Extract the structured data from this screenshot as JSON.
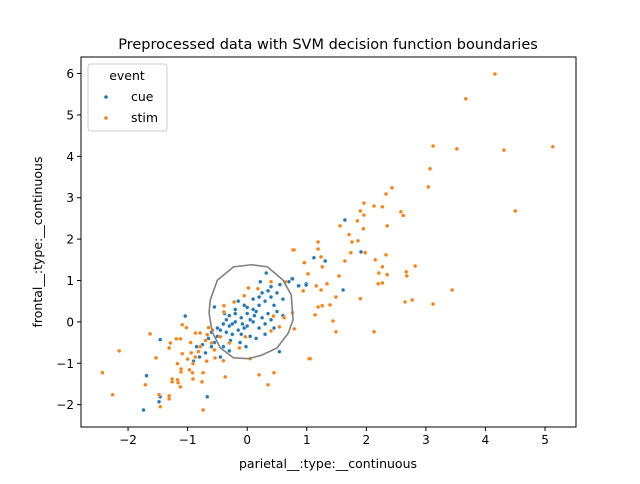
{
  "chart_data": {
    "type": "scatter",
    "title": "Preprocessed data with SVM decision function boundaries",
    "xlabel": "parietal__:type:__continuous",
    "ylabel": "frontal__:type:__continuous",
    "xlim": [
      -2.79,
      5.52
    ],
    "ylim": [
      -2.54,
      6.4
    ],
    "xticks": [
      -2,
      -1,
      0,
      1,
      2,
      3,
      4,
      5
    ],
    "yticks": [
      -2,
      -1,
      0,
      1,
      2,
      3,
      4,
      5,
      6
    ],
    "grid": false,
    "legend": {
      "title": "event",
      "placement": "top-left"
    },
    "series": [
      {
        "name": "cue",
        "color": "#1f77b4",
        "points": [
          [
            1.64,
            2.46
          ],
          [
            1.12,
            1.55
          ],
          [
            1.31,
            1.47
          ],
          [
            1.91,
            1.69
          ],
          [
            0.87,
            0.87
          ],
          [
            0.99,
            0.92
          ],
          [
            1.61,
            0.77
          ],
          [
            0.75,
            1.04
          ],
          [
            -1.74,
            -2.13
          ],
          [
            -1.69,
            -1.3
          ],
          [
            -1.46,
            -1.81
          ],
          [
            -1.48,
            -1.93
          ],
          [
            -1.46,
            -0.43
          ],
          [
            -1.04,
            0.14
          ],
          [
            -0.67,
            -1.81
          ],
          [
            -0.55,
            0.36
          ],
          [
            0.32,
            1.18
          ],
          [
            0.22,
            0.97
          ],
          [
            0.54,
            -0.72
          ],
          [
            -0.02,
            -0.6
          ],
          [
            0.7,
            0.97
          ],
          [
            0.76,
            1.04
          ],
          [
            0.86,
            0.87
          ],
          [
            0.99,
            0.89
          ],
          [
            -0.3,
            -0.1
          ],
          [
            -0.2,
            0.0
          ],
          [
            -0.1,
            0.1
          ],
          [
            0.0,
            0.2
          ],
          [
            0.1,
            0.3
          ],
          [
            0.2,
            0.4
          ],
          [
            0.3,
            0.5
          ],
          [
            0.4,
            0.6
          ],
          [
            0.5,
            0.7
          ],
          [
            0.45,
            0.4
          ],
          [
            0.35,
            0.2
          ],
          [
            0.25,
            0.1
          ],
          [
            0.15,
            0.25
          ],
          [
            0.05,
            0.05
          ],
          [
            -0.05,
            -0.15
          ],
          [
            -0.15,
            -0.2
          ],
          [
            -0.25,
            -0.3
          ],
          [
            -0.35,
            -0.25
          ],
          [
            -0.4,
            -0.05
          ],
          [
            -0.45,
            -0.2
          ],
          [
            -0.5,
            -0.35
          ],
          [
            -0.55,
            -0.5
          ],
          [
            -0.6,
            -0.6
          ],
          [
            -0.65,
            -0.4
          ],
          [
            -0.7,
            -0.75
          ],
          [
            -0.8,
            -0.85
          ],
          [
            -0.85,
            -0.6
          ],
          [
            -0.9,
            -0.95
          ],
          [
            -0.75,
            -0.55
          ],
          [
            -0.3,
            0.15
          ],
          [
            -0.2,
            0.3
          ],
          [
            -0.1,
            -0.3
          ],
          [
            0.0,
            -0.1
          ],
          [
            0.1,
            0.0
          ],
          [
            0.2,
            -0.15
          ],
          [
            0.3,
            -0.05
          ],
          [
            0.4,
            0.05
          ],
          [
            0.5,
            0.25
          ],
          [
            0.6,
            0.55
          ],
          [
            0.55,
            0.9
          ],
          [
            0.4,
            0.85
          ],
          [
            0.25,
            0.7
          ],
          [
            0.1,
            0.55
          ],
          [
            -0.05,
            0.4
          ],
          [
            -0.2,
            0.2
          ],
          [
            -0.35,
            0.05
          ],
          [
            -0.28,
            -0.45
          ],
          [
            -0.12,
            -0.5
          ],
          [
            0.05,
            -0.35
          ],
          [
            0.15,
            -0.4
          ],
          [
            0.3,
            -0.3
          ],
          [
            -0.4,
            -0.6
          ],
          [
            -0.5,
            -0.15
          ],
          [
            -0.6,
            -0.25
          ],
          [
            -0.3,
            -0.7
          ],
          [
            -0.45,
            -0.85
          ],
          [
            0.2,
            0.6
          ],
          [
            0.35,
            0.75
          ],
          [
            -0.15,
            0.5
          ],
          [
            -0.25,
            -0.05
          ],
          [
            -0.38,
            0.2
          ],
          [
            0.0,
            0.35
          ],
          [
            0.12,
            0.15
          ],
          [
            -0.08,
            -0.05
          ],
          [
            0.6,
            0.15
          ],
          [
            0.45,
            -0.15
          ]
        ]
      },
      {
        "name": "stim",
        "color": "#ff7f0e",
        "points": [
          [
            4.16,
            5.99
          ],
          [
            3.67,
            5.39
          ],
          [
            3.12,
            4.25
          ],
          [
            3.52,
            4.18
          ],
          [
            4.31,
            4.15
          ],
          [
            5.13,
            4.23
          ],
          [
            3.07,
            3.7
          ],
          [
            3.04,
            3.26
          ],
          [
            2.43,
            3.24
          ],
          [
            2.33,
            3.09
          ],
          [
            4.5,
            2.68
          ],
          [
            1.96,
            2.87
          ],
          [
            2.13,
            2.8
          ],
          [
            2.27,
            2.78
          ],
          [
            2.58,
            2.66
          ],
          [
            2.62,
            2.57
          ],
          [
            1.9,
            2.68
          ],
          [
            1.96,
            2.58
          ],
          [
            1.85,
            2.44
          ],
          [
            1.95,
            2.25
          ],
          [
            2.35,
            2.32
          ],
          [
            1.56,
            2.32
          ],
          [
            1.71,
            2.11
          ],
          [
            1.76,
            1.93
          ],
          [
            1.86,
            1.96
          ],
          [
            1.19,
            1.93
          ],
          [
            1.19,
            1.76
          ],
          [
            0.79,
            1.74
          ],
          [
            1.74,
            1.67
          ],
          [
            1.98,
            1.67
          ],
          [
            2.33,
            1.62
          ],
          [
            1.24,
            1.57
          ],
          [
            0.96,
            1.43
          ],
          [
            1.64,
            1.47
          ],
          [
            2.15,
            1.5
          ],
          [
            1.26,
            1.33
          ],
          [
            2.27,
            1.33
          ],
          [
            2.82,
            1.35
          ],
          [
            2.21,
            1.18
          ],
          [
            2.67,
            1.21
          ],
          [
            2.68,
            1.11
          ],
          [
            2.35,
            1.14
          ],
          [
            1.02,
            1.16
          ],
          [
            1.54,
            1.11
          ],
          [
            2.2,
            0.92
          ],
          [
            2.27,
            0.94
          ],
          [
            1.34,
            0.92
          ],
          [
            1.16,
            0.87
          ],
          [
            1.24,
            0.77
          ],
          [
            0.94,
            0.75
          ],
          [
            3.44,
            0.77
          ],
          [
            1.49,
            0.6
          ],
          [
            1.9,
            0.56
          ],
          [
            2.65,
            0.48
          ],
          [
            2.77,
            0.53
          ],
          [
            3.12,
            0.43
          ],
          [
            1.39,
            0.41
          ],
          [
            1.26,
            0.39
          ],
          [
            1.19,
            0.36
          ],
          [
            1.14,
            0.17
          ],
          [
            1.44,
            0.02
          ],
          [
            1.49,
            -0.24
          ],
          [
            2.13,
            -0.24
          ],
          [
            1.06,
            -0.89
          ],
          [
            0.79,
            -0.17
          ],
          [
            -2.43,
            -1.23
          ],
          [
            -2.26,
            -1.76
          ],
          [
            -2.15,
            -0.7
          ],
          [
            -1.63,
            -0.29
          ],
          [
            -1.53,
            -0.87
          ],
          [
            -1.71,
            -1.52
          ],
          [
            -1.48,
            -1.76
          ],
          [
            -1.46,
            -2.05
          ],
          [
            -1.31,
            -1.79
          ],
          [
            -1.31,
            -1.86
          ],
          [
            -1.26,
            -1.38
          ],
          [
            -1.26,
            -1.45
          ],
          [
            -1.17,
            -1.4
          ],
          [
            -1.16,
            -1.47
          ],
          [
            -1.12,
            -1.57
          ],
          [
            -1.29,
            -0.51
          ],
          [
            -1.31,
            -0.63
          ],
          [
            -1.19,
            -0.41
          ],
          [
            -1.12,
            -0.41
          ],
          [
            -1.09,
            -0.07
          ],
          [
            -1.02,
            -0.14
          ],
          [
            -1.17,
            -1.01
          ],
          [
            -1.09,
            -0.77
          ],
          [
            -1.11,
            -1.14
          ],
          [
            -1.11,
            -1.21
          ],
          [
            -0.94,
            -0.75
          ],
          [
            -0.87,
            -0.85
          ],
          [
            -0.91,
            -1.01
          ],
          [
            -0.97,
            -1.16
          ],
          [
            -0.92,
            -1.23
          ],
          [
            -0.91,
            -1.38
          ],
          [
            -0.76,
            -1.45
          ],
          [
            -0.74,
            -1.23
          ],
          [
            -0.74,
            -2.13
          ],
          [
            -0.82,
            -0.72
          ],
          [
            -0.79,
            -0.6
          ],
          [
            -0.87,
            -0.27
          ],
          [
            -0.79,
            -0.27
          ],
          [
            -0.65,
            -0.14
          ],
          [
            -0.67,
            -0.31
          ],
          [
            -0.6,
            -0.51
          ],
          [
            -0.55,
            -0.68
          ],
          [
            -0.54,
            -0.87
          ],
          [
            -0.4,
            -0.94
          ],
          [
            -0.37,
            -1.33
          ],
          [
            -0.3,
            -0.51
          ],
          [
            -0.45,
            -0.36
          ],
          [
            -0.39,
            0.39
          ],
          [
            -0.39,
            0.24
          ],
          [
            -0.22,
            0.48
          ],
          [
            -0.05,
            0.63
          ],
          [
            0.02,
            0.82
          ],
          [
            0.18,
            0.8
          ],
          [
            0.4,
            0.97
          ],
          [
            0.44,
            0.14
          ],
          [
            0.54,
            -0.12
          ],
          [
            0.4,
            -0.22
          ],
          [
            0.62,
            0.1
          ],
          [
            0.76,
            0.22
          ],
          [
            -0.03,
            -0.36
          ],
          [
            0.2,
            -1.28
          ],
          [
            0.45,
            -1.23
          ],
          [
            0.35,
            -1.52
          ],
          [
            0.05,
            -0.89
          ],
          [
            -0.13,
            -0.63
          ],
          [
            0.64,
            0.97
          ],
          [
            1.04,
            -0.89
          ],
          [
            0.77,
            1.74
          ],
          [
            -0.7,
            -0.45
          ],
          [
            -0.58,
            -0.2
          ],
          [
            -0.95,
            -0.5
          ],
          [
            -1.0,
            -0.9
          ],
          [
            -0.68,
            -0.95
          ]
        ]
      }
    ],
    "decision_boundary": {
      "color": "#808080",
      "points": [
        [
          -0.62,
          0.53
        ],
        [
          -0.5,
          1.01
        ],
        [
          -0.23,
          1.33
        ],
        [
          0.07,
          1.38
        ],
        [
          0.34,
          1.33
        ],
        [
          0.6,
          1.01
        ],
        [
          0.74,
          0.65
        ],
        [
          0.77,
          0.05
        ],
        [
          0.69,
          -0.27
        ],
        [
          0.5,
          -0.63
        ],
        [
          0.25,
          -0.8
        ],
        [
          0.02,
          -0.89
        ],
        [
          -0.23,
          -0.87
        ],
        [
          -0.45,
          -0.63
        ],
        [
          -0.59,
          -0.24
        ],
        [
          -0.64,
          0.22
        ],
        [
          -0.62,
          0.53
        ]
      ]
    }
  }
}
